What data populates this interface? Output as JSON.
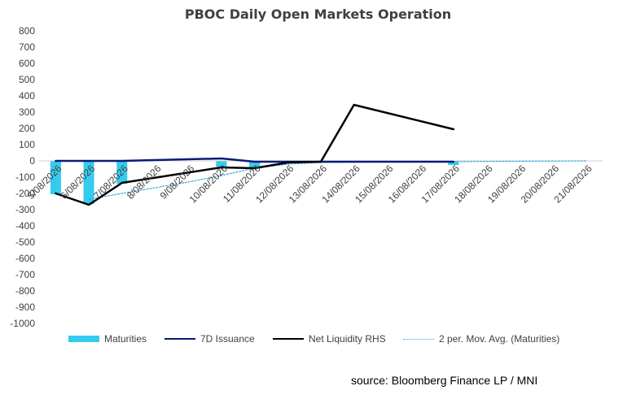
{
  "title": "PBOC Daily Open Markets Operation",
  "source": "source: Bloomberg Finance LP / MNI",
  "colors": {
    "maturities": "#33ccee",
    "issuance": "#0a1a7a",
    "net_liquidity": "#000000",
    "moving_avg": "#33aadd"
  },
  "chart_data": {
    "type": "bar",
    "title": "PBOC Daily Open Markets Operation",
    "categories": [
      "5/08/2026",
      "6/08/2026",
      "7/08/2026",
      "8/08/2026",
      "9/08/2026",
      "10/08/2026",
      "11/08/2026",
      "12/08/2026",
      "13/08/2026",
      "14/08/2026",
      "15/08/2026",
      "16/08/2026",
      "17/08/2026",
      "18/08/2026",
      "19/08/2026",
      "20/08/2026",
      "21/08/2026"
    ],
    "ylim": [
      -1000,
      800
    ],
    "yticks": [
      800,
      700,
      600,
      500,
      400,
      300,
      200,
      100,
      0,
      -100,
      -200,
      -300,
      -400,
      -500,
      -600,
      -700,
      -800,
      -900,
      -1000
    ],
    "grid": false,
    "legend_position": "bottom",
    "series": [
      {
        "name": "Maturities",
        "kind": "bar",
        "values": [
          -205,
          -265,
          -140,
          null,
          null,
          -35,
          -40,
          null,
          null,
          null,
          null,
          null,
          -25,
          null,
          null,
          null,
          null
        ]
      },
      {
        "name": "7D Issuance",
        "kind": "line",
        "values": [
          0,
          0,
          0,
          null,
          null,
          15,
          -5,
          -5,
          -5,
          null,
          null,
          null,
          -5,
          null,
          null,
          null,
          null
        ]
      },
      {
        "name": "Net Liquidity RHS",
        "kind": "line",
        "values": [
          -200,
          -270,
          -135,
          null,
          null,
          -40,
          -45,
          -10,
          -5,
          345,
          null,
          null,
          195,
          null,
          null,
          null,
          null
        ]
      },
      {
        "name": "2 per. Mov. Avg. (Maturities)",
        "kind": "dotted-line",
        "values": [
          null,
          -235,
          -200,
          -165,
          -130,
          -90,
          -45,
          -20,
          -10,
          -8,
          -6,
          -5,
          -5,
          -3,
          -2,
          -1,
          0
        ]
      }
    ]
  }
}
